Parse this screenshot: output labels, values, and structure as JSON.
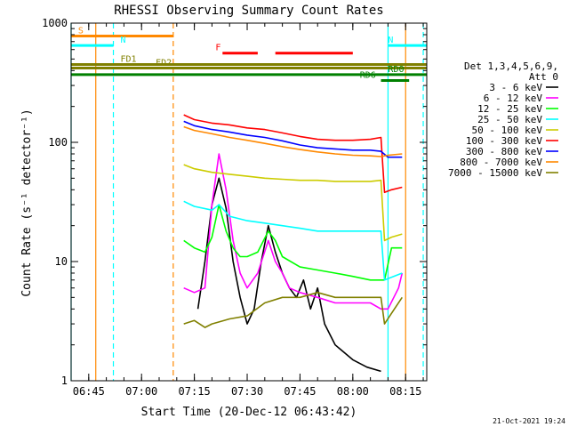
{
  "footer": {
    "timestamp": "21-Oct-2021 19:24"
  },
  "colors": {
    "black": "#000000",
    "magenta": "#ff00ff",
    "green": "#00ff00",
    "cyan": "#00ffff",
    "yellow": "#cccc00",
    "red": "#ff0000",
    "blue": "#0000ff",
    "orange": "#ff8800",
    "olive": "#808000",
    "darkgreen": "#008000"
  },
  "chart_data": {
    "type": "line",
    "title": "RHESSI Observing Summary Count Rates",
    "xlabel": "Start Time (20-Dec-12 06:43:42)",
    "ylabel": "Count Rate (s⁻¹ detector⁻¹)",
    "y_scale": "log",
    "ylim": [
      1,
      1000
    ],
    "xlim": [
      "06:40",
      "08:21"
    ],
    "x_ticks": [
      "06:45",
      "07:00",
      "07:15",
      "07:30",
      "07:45",
      "08:00",
      "08:15"
    ],
    "y_ticks": [
      "1",
      "10",
      "100",
      "1000"
    ],
    "legend": {
      "placement": "right",
      "header": [
        "Det 1,3,4,5,6,9,",
        "Att 0"
      ],
      "entries": [
        {
          "label": "3 - 6 keV",
          "color": "#000000"
        },
        {
          "label": "6 - 12 keV",
          "color": "#ff00ff"
        },
        {
          "label": "12 - 25 keV",
          "color": "#00ff00"
        },
        {
          "label": "25 - 50 keV",
          "color": "#00ffff"
        },
        {
          "label": "50 - 100 keV",
          "color": "#cccc00"
        },
        {
          "label": "100 - 300 keV",
          "color": "#ff0000"
        },
        {
          "label": "300 - 800 keV",
          "color": "#0000ff"
        },
        {
          "label": "800 - 7000 keV",
          "color": "#ff8800"
        },
        {
          "label": "7000 - 15000 keV",
          "color": "#808000"
        }
      ]
    },
    "series": [
      {
        "name": "3 - 6 keV",
        "color": "#000000",
        "points": [
          [
            "07:16",
            4
          ],
          [
            "07:18",
            10
          ],
          [
            "07:20",
            30
          ],
          [
            "07:22",
            50
          ],
          [
            "07:24",
            28
          ],
          [
            "07:26",
            10
          ],
          [
            "07:28",
            5
          ],
          [
            "07:30",
            3
          ],
          [
            "07:32",
            4
          ],
          [
            "07:34",
            10
          ],
          [
            "07:36",
            20
          ],
          [
            "07:38",
            12
          ],
          [
            "07:40",
            8
          ],
          [
            "07:42",
            6
          ],
          [
            "07:44",
            5
          ],
          [
            "07:46",
            7
          ],
          [
            "07:48",
            4
          ],
          [
            "07:50",
            6
          ],
          [
            "07:52",
            3
          ],
          [
            "07:55",
            2
          ],
          [
            "08:00",
            1.5
          ],
          [
            "08:04",
            1.3
          ],
          [
            "08:08",
            1.2
          ]
        ]
      },
      {
        "name": "6 - 12 keV",
        "color": "#ff00ff",
        "points": [
          [
            "07:12",
            6
          ],
          [
            "07:15",
            5.5
          ],
          [
            "07:18",
            6
          ],
          [
            "07:20",
            30
          ],
          [
            "07:22",
            80
          ],
          [
            "07:24",
            40
          ],
          [
            "07:26",
            15
          ],
          [
            "07:28",
            8
          ],
          [
            "07:30",
            6
          ],
          [
            "07:33",
            8
          ],
          [
            "07:36",
            15
          ],
          [
            "07:38",
            10
          ],
          [
            "07:40",
            8
          ],
          [
            "07:42",
            6
          ],
          [
            "07:45",
            5.5
          ],
          [
            "07:50",
            5
          ],
          [
            "07:55",
            4.5
          ],
          [
            "08:00",
            4.5
          ],
          [
            "08:05",
            4.5
          ],
          [
            "08:08",
            4
          ],
          [
            "08:10",
            4
          ],
          [
            "08:13",
            6
          ],
          [
            "08:14",
            8
          ]
        ]
      },
      {
        "name": "12 - 25 keV",
        "color": "#00ff00",
        "points": [
          [
            "07:12",
            15
          ],
          [
            "07:15",
            13
          ],
          [
            "07:18",
            12
          ],
          [
            "07:20",
            16
          ],
          [
            "07:22",
            30
          ],
          [
            "07:24",
            18
          ],
          [
            "07:26",
            13
          ],
          [
            "07:28",
            11
          ],
          [
            "07:30",
            11
          ],
          [
            "07:33",
            12
          ],
          [
            "07:36",
            18
          ],
          [
            "07:38",
            15
          ],
          [
            "07:40",
            11
          ],
          [
            "07:45",
            9
          ],
          [
            "07:50",
            8.5
          ],
          [
            "07:55",
            8
          ],
          [
            "08:00",
            7.5
          ],
          [
            "08:05",
            7
          ],
          [
            "08:08",
            7
          ],
          [
            "08:09",
            7
          ],
          [
            "08:11",
            13
          ],
          [
            "08:14",
            13
          ]
        ]
      },
      {
        "name": "25 - 50 keV",
        "color": "#00ffff",
        "points": [
          [
            "07:12",
            32
          ],
          [
            "07:15",
            29
          ],
          [
            "07:20",
            27
          ],
          [
            "07:22",
            30
          ],
          [
            "07:25",
            24
          ],
          [
            "07:30",
            22
          ],
          [
            "07:35",
            21
          ],
          [
            "07:40",
            20
          ],
          [
            "07:45",
            19
          ],
          [
            "07:50",
            18
          ],
          [
            "07:55",
            18
          ],
          [
            "08:00",
            18
          ],
          [
            "08:05",
            18
          ],
          [
            "08:08",
            18
          ],
          [
            "08:09",
            7
          ],
          [
            "08:14",
            8
          ]
        ]
      },
      {
        "name": "50 - 100 keV",
        "color": "#cccc00",
        "points": [
          [
            "07:12",
            65
          ],
          [
            "07:15",
            60
          ],
          [
            "07:20",
            56
          ],
          [
            "07:25",
            54
          ],
          [
            "07:30",
            52
          ],
          [
            "07:35",
            50
          ],
          [
            "07:40",
            49
          ],
          [
            "07:45",
            48
          ],
          [
            "07:50",
            48
          ],
          [
            "07:55",
            47
          ],
          [
            "08:00",
            47
          ],
          [
            "08:05",
            47
          ],
          [
            "08:08",
            48
          ],
          [
            "08:09",
            15
          ],
          [
            "08:11",
            16
          ],
          [
            "08:14",
            17
          ]
        ]
      },
      {
        "name": "100 - 300 keV",
        "color": "#ff0000",
        "points": [
          [
            "07:12",
            170
          ],
          [
            "07:15",
            155
          ],
          [
            "07:20",
            145
          ],
          [
            "07:25",
            140
          ],
          [
            "07:30",
            132
          ],
          [
            "07:35",
            128
          ],
          [
            "07:40",
            120
          ],
          [
            "07:45",
            112
          ],
          [
            "07:50",
            106
          ],
          [
            "07:55",
            104
          ],
          [
            "08:00",
            104
          ],
          [
            "08:05",
            106
          ],
          [
            "08:08",
            110
          ],
          [
            "08:09",
            38
          ],
          [
            "08:11",
            40
          ],
          [
            "08:14",
            42
          ]
        ]
      },
      {
        "name": "300 - 800 keV",
        "color": "#0000ff",
        "points": [
          [
            "07:12",
            150
          ],
          [
            "07:15",
            138
          ],
          [
            "07:20",
            128
          ],
          [
            "07:25",
            122
          ],
          [
            "07:30",
            115
          ],
          [
            "07:35",
            110
          ],
          [
            "07:40",
            103
          ],
          [
            "07:45",
            95
          ],
          [
            "07:50",
            90
          ],
          [
            "07:55",
            88
          ],
          [
            "08:00",
            86
          ],
          [
            "08:05",
            86
          ],
          [
            "08:08",
            84
          ],
          [
            "08:10",
            75
          ],
          [
            "08:14",
            75
          ]
        ]
      },
      {
        "name": "800 - 7000 keV",
        "color": "#ff8800",
        "points": [
          [
            "07:12",
            135
          ],
          [
            "07:15",
            126
          ],
          [
            "07:20",
            118
          ],
          [
            "07:25",
            110
          ],
          [
            "07:30",
            104
          ],
          [
            "07:35",
            98
          ],
          [
            "07:40",
            92
          ],
          [
            "07:45",
            87
          ],
          [
            "07:50",
            83
          ],
          [
            "07:55",
            80
          ],
          [
            "08:00",
            78
          ],
          [
            "08:05",
            77
          ],
          [
            "08:08",
            76
          ],
          [
            "08:10",
            78
          ],
          [
            "08:14",
            80
          ]
        ]
      },
      {
        "name": "7000 - 15000 keV",
        "color": "#808000",
        "points": [
          [
            "07:12",
            3
          ],
          [
            "07:15",
            3.2
          ],
          [
            "07:18",
            2.8
          ],
          [
            "07:20",
            3
          ],
          [
            "07:25",
            3.3
          ],
          [
            "07:30",
            3.5
          ],
          [
            "07:35",
            4.5
          ],
          [
            "07:40",
            5
          ],
          [
            "07:45",
            5
          ],
          [
            "07:50",
            5.5
          ],
          [
            "07:55",
            5
          ],
          [
            "08:00",
            5
          ],
          [
            "08:05",
            5
          ],
          [
            "08:08",
            5
          ],
          [
            "08:09",
            3
          ],
          [
            "08:14",
            5
          ]
        ]
      }
    ],
    "vertical_markers": [
      {
        "time": "06:40",
        "color": "#00ffff",
        "style": "solid"
      },
      {
        "time": "06:47",
        "color": "#ff8800",
        "style": "solid"
      },
      {
        "time": "06:52",
        "color": "#00ffff",
        "style": "dashed"
      },
      {
        "time": "07:09",
        "color": "#ff8800",
        "style": "dashed"
      },
      {
        "time": "08:10",
        "color": "#00ffff",
        "style": "solid"
      },
      {
        "time": "08:15",
        "color": "#ff8800",
        "style": "solid"
      },
      {
        "time": "08:20",
        "color": "#00ffff",
        "style": "dashed"
      }
    ],
    "flag_bars": [
      {
        "label": "S",
        "color": "#ff8800",
        "start": "06:40",
        "end": "07:09",
        "level": 780,
        "label_at": "06:42"
      },
      {
        "label": "N",
        "color": "#00ffff",
        "start": "06:40",
        "end": "06:52",
        "level": 650,
        "label_at": "06:54"
      },
      {
        "label": "N",
        "color": "#00ffff",
        "start": "08:10",
        "end": "08:21",
        "level": 650,
        "label_at": ""
      },
      {
        "label": "F",
        "color": "#ff0000",
        "start": "07:23",
        "end": "07:33",
        "level": 560,
        "label_at": "07:21"
      },
      {
        "label": "",
        "color": "#ff0000",
        "start": "07:38",
        "end": "08:00",
        "level": 560,
        "label_at": ""
      },
      {
        "label": "FD1",
        "color": "#808000",
        "start": "06:40",
        "end": "08:21",
        "level": 450,
        "label_at": "06:54"
      },
      {
        "label": "FD2",
        "color": "#808000",
        "start": "06:40",
        "end": "08:21",
        "level": 420,
        "label_at": "07:04"
      },
      {
        "label": "RD0",
        "color": "#008000",
        "start": "06:40",
        "end": "08:21",
        "level": 370,
        "label_at": "08:10"
      },
      {
        "label": "RD6",
        "color": "#008000",
        "start": "08:08",
        "end": "08:16",
        "level": 330,
        "label_at": "08:02"
      }
    ]
  }
}
